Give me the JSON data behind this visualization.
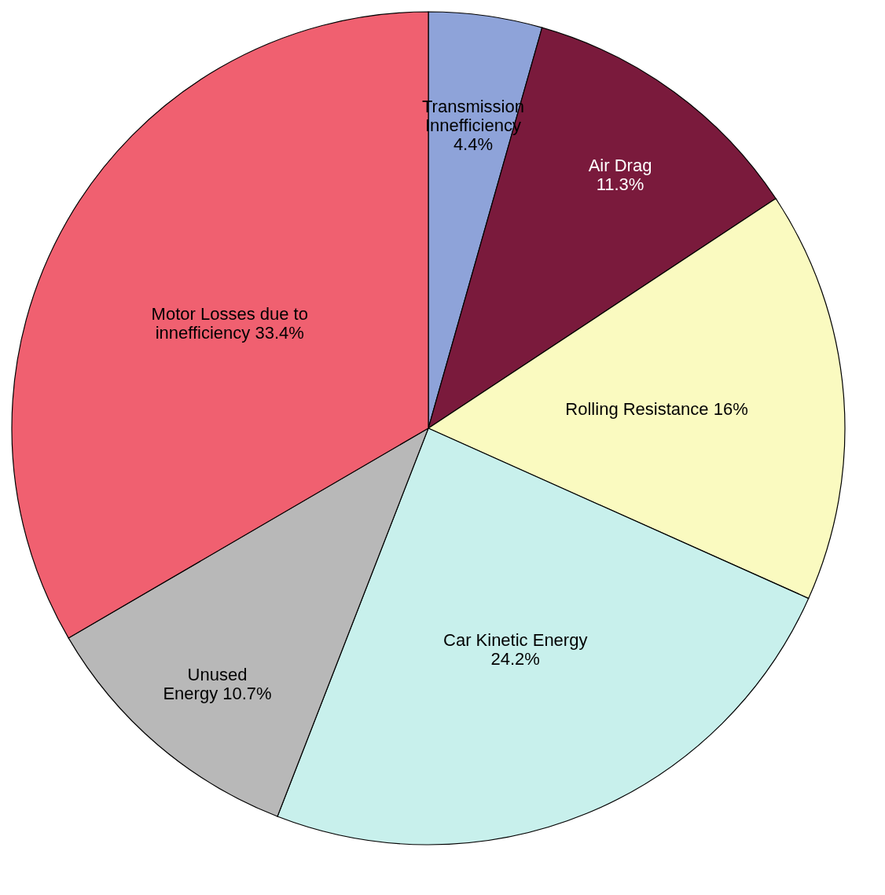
{
  "chart_data": {
    "type": "pie",
    "categories": [
      "Transmission Innefficiency",
      "Air Drag",
      "Rolling Resistance",
      "Car Kinetic Energy",
      "Unused Energy",
      "Motor Losses due to innefficiency"
    ],
    "values": [
      4.4,
      11.3,
      16,
      24.2,
      10.7,
      33.4
    ],
    "colors": [
      "#8ea3d9",
      "#7a1a3c",
      "#fafac0",
      "#c8f0ec",
      "#b8b8b8",
      "#f06070"
    ],
    "value_labels": [
      "4.4%",
      "11.3%",
      "16%",
      "24.2%",
      "10.7%",
      "33.4%"
    ],
    "legend": false
  }
}
